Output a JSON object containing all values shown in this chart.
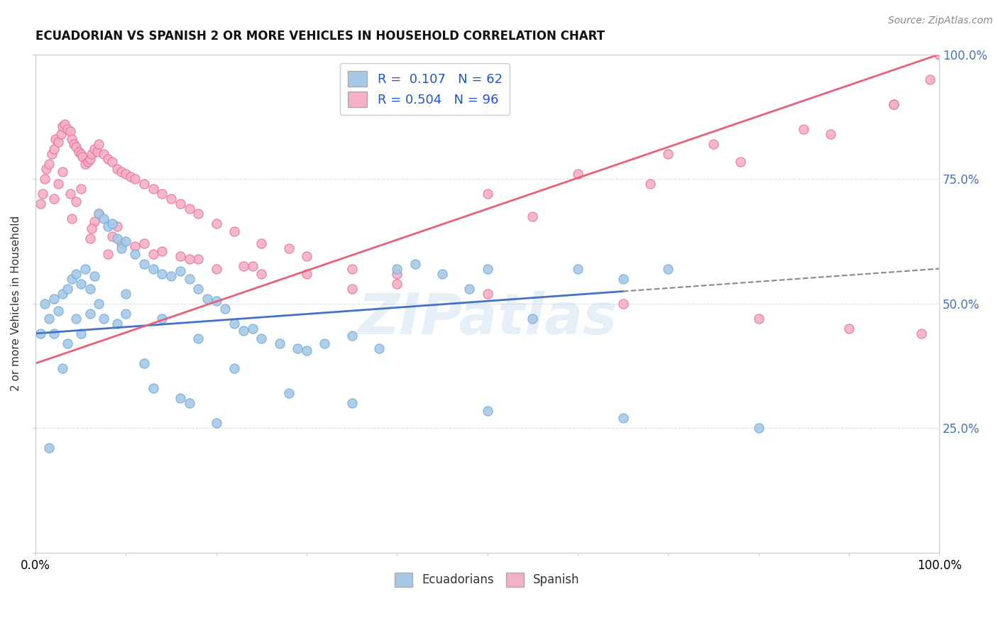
{
  "title": "ECUADORIAN VS SPANISH 2 OR MORE VEHICLES IN HOUSEHOLD CORRELATION CHART",
  "source": "Source: ZipAtlas.com",
  "xlabel": "",
  "ylabel": "2 or more Vehicles in Household",
  "xlim": [
    0,
    100
  ],
  "ylim": [
    0,
    100
  ],
  "xtick_positions": [
    0,
    10,
    20,
    30,
    40,
    50,
    60,
    70,
    80,
    90,
    100
  ],
  "xtick_labels": [
    "0.0%",
    "",
    "",
    "",
    "",
    "",
    "",
    "",
    "",
    "",
    "100.0%"
  ],
  "ytick_positions": [
    0,
    25,
    50,
    75,
    100
  ],
  "ytick_labels_right": [
    "",
    "25.0%",
    "50.0%",
    "75.0%",
    "100.0%"
  ],
  "legend_labels": [
    "Ecuadorians",
    "Spanish"
  ],
  "ecuadorian_color": "#a8c8e8",
  "spanish_color": "#f4b0c8",
  "ecuadorian_edge_color": "#6baed6",
  "spanish_edge_color": "#e87090",
  "trend_ecuadorian_color": "#4472c4",
  "trend_spanish_color": "#e8607a",
  "background_color": "#ffffff",
  "watermark": "ZIPatlas",
  "R_ecuadorian": 0.107,
  "N_ecuadorian": 62,
  "R_spanish": 0.504,
  "N_spanish": 96,
  "ecu_trend_y0": 44.0,
  "ecu_trend_y1": 57.0,
  "spa_trend_y0": 38.0,
  "spa_trend_y1": 100.0,
  "ecuadorian_x": [
    0.5,
    1.0,
    1.5,
    2.0,
    2.5,
    3.0,
    3.5,
    4.0,
    4.5,
    5.0,
    5.5,
    6.0,
    6.5,
    7.0,
    7.5,
    8.0,
    8.5,
    9.0,
    9.5,
    10.0,
    11.0,
    12.0,
    13.0,
    14.0,
    15.0,
    16.0,
    17.0,
    18.0,
    19.0,
    20.0,
    21.0,
    22.0,
    23.0,
    24.0,
    25.0,
    27.0,
    29.0,
    30.0,
    32.0,
    35.0,
    38.0,
    40.0,
    42.0,
    45.0,
    48.0,
    50.0,
    55.0,
    60.0,
    65.0,
    70.0,
    2.0,
    4.5,
    7.0,
    10.0,
    14.0,
    18.0,
    22.0,
    28.0,
    35.0,
    50.0,
    65.0,
    80.0
  ],
  "ecuadorian_y": [
    44.0,
    50.0,
    47.0,
    51.0,
    48.5,
    52.0,
    53.0,
    55.0,
    56.0,
    54.0,
    57.0,
    53.0,
    55.5,
    68.0,
    67.0,
    65.5,
    66.0,
    63.0,
    61.0,
    62.5,
    60.0,
    58.0,
    57.0,
    56.0,
    55.5,
    56.5,
    55.0,
    53.0,
    51.0,
    50.5,
    49.0,
    46.0,
    44.5,
    45.0,
    43.0,
    42.0,
    41.0,
    40.5,
    42.0,
    43.5,
    41.0,
    57.0,
    58.0,
    56.0,
    53.0,
    57.0,
    47.0,
    57.0,
    55.0,
    57.0,
    44.0,
    47.0,
    50.0,
    52.0,
    47.0,
    43.0,
    37.0,
    32.0,
    30.0,
    28.5,
    27.0,
    25.0
  ],
  "ecuadorian_x2": [
    1.5,
    3.0,
    5.0,
    7.5,
    10.0,
    13.0,
    17.0,
    20.0,
    3.5,
    6.0,
    9.0,
    12.0,
    16.0
  ],
  "ecuadorian_y2": [
    21.0,
    37.0,
    44.0,
    47.0,
    48.0,
    33.0,
    30.0,
    26.0,
    42.0,
    48.0,
    46.0,
    38.0,
    31.0
  ],
  "spanish_x": [
    0.5,
    0.8,
    1.0,
    1.2,
    1.5,
    1.8,
    2.0,
    2.2,
    2.5,
    2.8,
    3.0,
    3.2,
    3.5,
    3.8,
    4.0,
    4.2,
    4.5,
    4.8,
    5.0,
    5.2,
    5.5,
    5.8,
    6.0,
    6.2,
    6.5,
    6.8,
    7.0,
    7.5,
    8.0,
    8.5,
    9.0,
    9.5,
    10.0,
    10.5,
    11.0,
    12.0,
    13.0,
    14.0,
    15.0,
    16.0,
    17.0,
    18.0,
    20.0,
    22.0,
    25.0,
    28.0,
    30.0,
    35.0,
    40.0,
    3.0,
    5.0,
    7.0,
    9.0,
    12.0,
    16.0,
    20.0,
    25.0,
    35.0,
    2.0,
    4.0,
    6.0,
    8.0,
    2.5,
    4.5,
    6.5,
    8.5,
    11.0,
    14.0,
    18.0,
    24.0,
    3.8,
    6.2,
    9.5,
    13.0,
    17.0,
    23.0,
    30.0,
    40.0,
    50.0,
    65.0,
    80.0,
    90.0,
    98.0,
    50.0,
    60.0,
    70.0,
    75.0,
    85.0,
    95.0,
    100.0,
    55.0,
    68.0,
    78.0,
    88.0,
    95.0,
    99.0
  ],
  "spanish_y": [
    70.0,
    72.0,
    75.0,
    77.0,
    78.0,
    80.0,
    81.0,
    83.0,
    82.5,
    84.0,
    85.5,
    86.0,
    85.0,
    84.5,
    83.0,
    82.0,
    81.5,
    80.5,
    80.0,
    79.5,
    78.0,
    78.5,
    79.0,
    80.0,
    81.0,
    80.5,
    82.0,
    80.0,
    79.0,
    78.5,
    77.0,
    76.5,
    76.0,
    75.5,
    75.0,
    74.0,
    73.0,
    72.0,
    71.0,
    70.0,
    69.0,
    68.0,
    66.0,
    64.5,
    62.0,
    61.0,
    59.5,
    57.0,
    56.0,
    76.5,
    73.0,
    68.0,
    65.5,
    62.0,
    59.5,
    57.0,
    56.0,
    53.0,
    71.0,
    67.0,
    63.0,
    60.0,
    74.0,
    70.5,
    66.5,
    63.5,
    61.5,
    60.5,
    59.0,
    57.5,
    72.0,
    65.0,
    62.0,
    60.0,
    59.0,
    57.5,
    56.0,
    54.0,
    52.0,
    50.0,
    47.0,
    45.0,
    44.0,
    72.0,
    76.0,
    80.0,
    82.0,
    85.0,
    90.0,
    100.0,
    67.5,
    74.0,
    78.5,
    84.0,
    90.0,
    95.0
  ]
}
